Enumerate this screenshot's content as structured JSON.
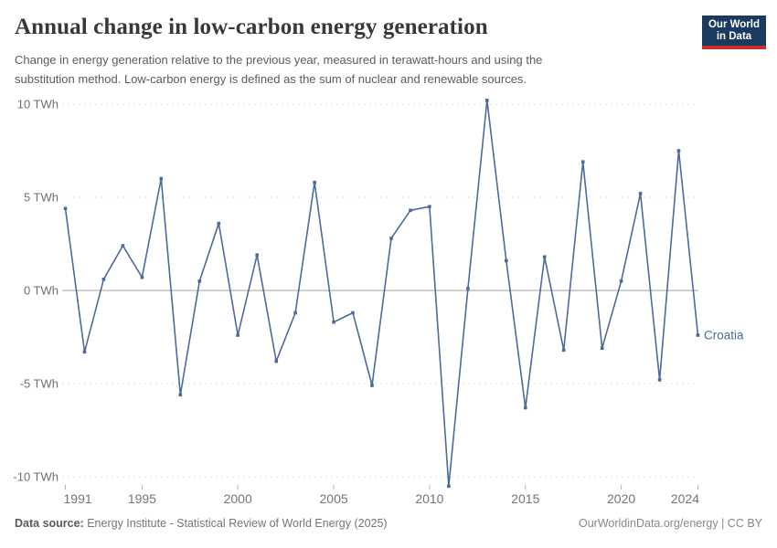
{
  "header": {
    "title": "Annual change in low-carbon energy generation",
    "subtitle_lines": [
      "Change in energy generation relative to the previous year, measured in terawatt-hours and using the",
      "substitution method. Low-carbon energy is defined as the sum of nuclear and renewable sources."
    ],
    "logo": {
      "line1": "Our World",
      "line2": "in Data",
      "bg_color": "#1b3a5f",
      "accent_color": "#c7302d"
    }
  },
  "chart_data": {
    "type": "line",
    "title": "Annual change in low-carbon energy generation",
    "series_label": "Croatia",
    "line_color": "#4c6a9c",
    "x": [
      1991,
      1992,
      1993,
      1994,
      1995,
      1996,
      1997,
      1998,
      1999,
      2000,
      2001,
      2002,
      2003,
      2004,
      2005,
      2006,
      2007,
      2008,
      2009,
      2010,
      2011,
      2012,
      2013,
      2014,
      2015,
      2016,
      2017,
      2018,
      2019,
      2020,
      2021,
      2022,
      2023,
      2024
    ],
    "values": [
      4.4,
      -3.3,
      0.6,
      2.4,
      0.7,
      6.0,
      -5.6,
      0.5,
      3.6,
      -2.4,
      1.9,
      -3.8,
      -1.2,
      5.8,
      -1.7,
      -1.2,
      -5.1,
      2.8,
      4.3,
      4.5,
      -10.5,
      0.1,
      10.2,
      1.6,
      -6.3,
      1.8,
      -3.2,
      6.9,
      -3.1,
      0.5,
      5.2,
      -4.8,
      7.5,
      -2.4
    ],
    "unit": "TWh",
    "yticks": [
      10,
      5,
      0,
      -5,
      -10
    ],
    "ytick_labels": [
      "10 TWh",
      "5 TWh",
      "0 TWh",
      "-5 TWh",
      "-10 TWh"
    ],
    "xticks": [
      1991,
      1995,
      2000,
      2005,
      2010,
      2015,
      2020,
      2024
    ],
    "ylim": [
      -10.5,
      10.3
    ],
    "grid": "dashed-horizontal, solid zero line",
    "legend_position": "end-of-line label"
  },
  "footer": {
    "source_label": "Data source:",
    "source_text": " Energy Institute - Statistical Review of World Energy (2025)",
    "right_text": "OurWorldinData.org/energy | CC BY"
  }
}
